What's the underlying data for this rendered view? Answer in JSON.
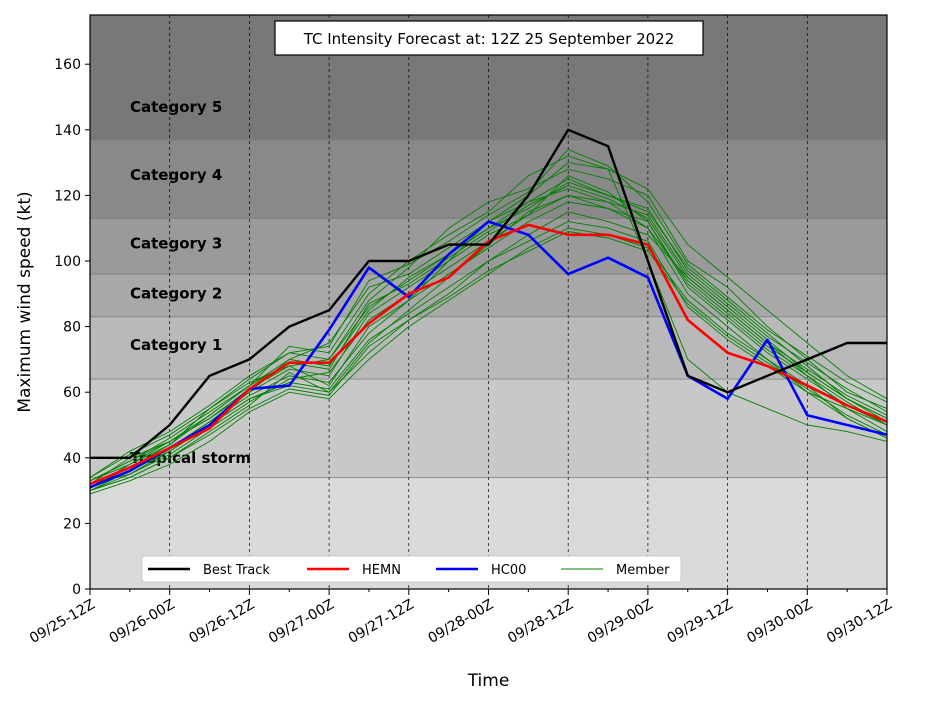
{
  "chart_data": {
    "type": "line",
    "title": "TC Intensity Forecast at: 12Z 25 September 2022",
    "xlabel": "Time",
    "ylabel": "Maximum wind speed (kt)",
    "x_tick_labels": [
      "09/25-12Z",
      "09/26-00Z",
      "09/26-12Z",
      "09/27-00Z",
      "09/27-12Z",
      "09/28-00Z",
      "09/28-12Z",
      "09/29-00Z",
      "09/29-12Z",
      "09/30-00Z",
      "09/30-12Z"
    ],
    "y_ticks": [
      0,
      20,
      40,
      60,
      80,
      100,
      120,
      140,
      160
    ],
    "ylim": [
      0,
      175
    ],
    "x_step_hours": 6,
    "grid": "vertical dashed",
    "categories_bands": [
      {
        "label": "Tropical storm",
        "min": 34,
        "max": 64,
        "color": "#c8c8c8"
      },
      {
        "label": "Category 1",
        "min": 64,
        "max": 83,
        "color": "#b9b9b9"
      },
      {
        "label": "Category 2",
        "min": 83,
        "max": 96,
        "color": "#a8a8a8"
      },
      {
        "label": "Category 3",
        "min": 96,
        "max": 113,
        "color": "#9a9a9a"
      },
      {
        "label": "Category 4",
        "min": 113,
        "max": 137,
        "color": "#898989"
      },
      {
        "label": "Category 5",
        "min": 137,
        "max": 175,
        "color": "#787878"
      }
    ],
    "below_ts_color": "#d9d9d9",
    "legend": {
      "placement": "lower-center"
    },
    "series": [
      {
        "name": "Best Track",
        "color": "#000000",
        "width": 2.4,
        "values": [
          40,
          40,
          50,
          65,
          70,
          80,
          85,
          100,
          100,
          105,
          105,
          120,
          140,
          135,
          100,
          65,
          60,
          65,
          70,
          75,
          75
        ]
      },
      {
        "name": "HEMN",
        "color": "#ff0000",
        "width": 2.6,
        "values": [
          32,
          37,
          43,
          49,
          61,
          69,
          69,
          81,
          90,
          95,
          106,
          111,
          108,
          108,
          105,
          82,
          72,
          68,
          62,
          56,
          51
        ]
      },
      {
        "name": "HC00",
        "color": "#0000ff",
        "width": 2.6,
        "values": [
          31,
          36,
          43,
          50,
          61,
          62,
          79,
          98,
          89,
          102,
          112,
          108,
          96,
          101,
          95,
          65,
          58,
          76,
          53,
          50,
          47
        ]
      },
      {
        "name": "Member",
        "color": "#008000",
        "width": 0.9,
        "members": [
          [
            33,
            38,
            44,
            55,
            63,
            68,
            62,
            80,
            88,
            100,
            112,
            120,
            130,
            128,
            100,
            70,
            60,
            55,
            50,
            48,
            45
          ],
          [
            31,
            36,
            42,
            50,
            58,
            62,
            60,
            75,
            85,
            95,
            105,
            115,
            120,
            118,
            110,
            90,
            80,
            70,
            60,
            55,
            50
          ],
          [
            30,
            34,
            40,
            48,
            56,
            66,
            60,
            72,
            82,
            90,
            100,
            108,
            115,
            112,
            108,
            95,
            85,
            75,
            65,
            55,
            48
          ],
          [
            32,
            40,
            45,
            52,
            60,
            70,
            68,
            85,
            95,
            102,
            110,
            118,
            125,
            120,
            115,
            98,
            88,
            78,
            68,
            58,
            52
          ],
          [
            34,
            42,
            48,
            56,
            65,
            72,
            70,
            88,
            98,
            110,
            118,
            122,
            128,
            125,
            120,
            100,
            92,
            80,
            70,
            60,
            55
          ],
          [
            29,
            33,
            38,
            45,
            54,
            60,
            58,
            70,
            80,
            88,
            96,
            104,
            110,
            108,
            104,
            88,
            78,
            70,
            62,
            52,
            46
          ],
          [
            31,
            37,
            44,
            53,
            62,
            74,
            72,
            90,
            100,
            108,
            115,
            126,
            132,
            128,
            122,
            105,
            95,
            85,
            75,
            65,
            58
          ],
          [
            30,
            36,
            43,
            51,
            59,
            65,
            63,
            78,
            88,
            96,
            104,
            112,
            118,
            116,
            112,
            92,
            82,
            72,
            64,
            56,
            50
          ],
          [
            33,
            39,
            46,
            54,
            62,
            70,
            75,
            92,
            96,
            104,
            112,
            118,
            122,
            118,
            114,
            96,
            86,
            76,
            66,
            58,
            52
          ],
          [
            32,
            35,
            41,
            49,
            57,
            64,
            66,
            82,
            90,
            98,
            106,
            114,
            120,
            116,
            110,
            94,
            84,
            74,
            66,
            58,
            51
          ],
          [
            31,
            38,
            45,
            52,
            61,
            68,
            70,
            86,
            94,
            102,
            110,
            116,
            124,
            120,
            116,
            97,
            87,
            77,
            69,
            61,
            54
          ],
          [
            30,
            35,
            42,
            50,
            58,
            63,
            61,
            76,
            84,
            92,
            100,
            106,
            112,
            110,
            106,
            86,
            76,
            68,
            60,
            52,
            46
          ],
          [
            34,
            41,
            47,
            55,
            64,
            72,
            74,
            94,
            99,
            106,
            114,
            121,
            134,
            129,
            118,
            99,
            89,
            79,
            71,
            63,
            57
          ],
          [
            32,
            37,
            43,
            51,
            60,
            67,
            65,
            84,
            92,
            100,
            108,
            114,
            126,
            121,
            112,
            93,
            83,
            73,
            65,
            57,
            50
          ],
          [
            30,
            34,
            40,
            47,
            55,
            61,
            59,
            74,
            82,
            89,
            97,
            103,
            109,
            107,
            103,
            87,
            77,
            69,
            61,
            53,
            47
          ],
          [
            33,
            39,
            45,
            53,
            62,
            69,
            67,
            87,
            93,
            101,
            109,
            117,
            123,
            119,
            113,
            95,
            85,
            75,
            67,
            59,
            53
          ]
        ]
      }
    ]
  }
}
